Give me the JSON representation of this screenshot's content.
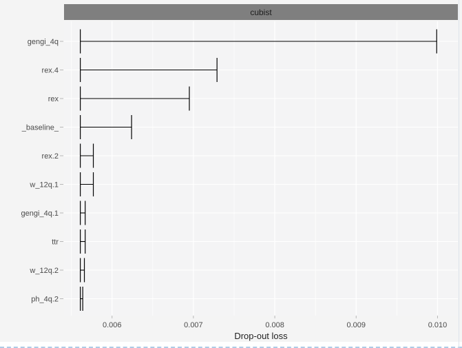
{
  "strip": {
    "label": "cubist"
  },
  "axis": {
    "x_title": "Drop-out loss",
    "x_tick_labels": [
      "0.006",
      "0.007",
      "0.008",
      "0.009",
      "0.010"
    ],
    "y_labels": [
      "gengi_4q",
      "rex.4",
      "rex",
      "_baseline_",
      "rex.2",
      "w_12q.1",
      "gengi_4q.1",
      "ttr",
      "w_12q.2",
      "ph_4q.2"
    ]
  },
  "colors": {
    "outer_bg": "#f4f4f4",
    "panel_bg": "#f4f4f5",
    "strip_bg": "#7f7f7f",
    "strip_text": "#1c1c1c",
    "gridline": "#ffffff",
    "errorbar": "#000000",
    "axis_text": "#4a4a4a",
    "tick_mark": "#b8b8b8",
    "pane_edge_dash": "#aecbe5"
  },
  "chart_data": {
    "type": "bar",
    "subtype": "horizontal-errorbar",
    "title": "cubist",
    "xlabel": "Drop-out loss",
    "ylabel": "",
    "orientation": "horizontal",
    "grid": true,
    "legend": false,
    "categories": [
      "gengi_4q",
      "rex.4",
      "rex",
      "_baseline_",
      "rex.2",
      "w_12q.1",
      "gengi_4q.1",
      "ttr",
      "w_12q.2",
      "ph_4q.2"
    ],
    "base_value": 0.00561,
    "values": [
      0.00999,
      0.00729,
      0.00695,
      0.00624,
      0.00577,
      0.00577,
      0.00567,
      0.00567,
      0.00566,
      0.00564
    ],
    "xlim": [
      0.00541,
      0.01025
    ],
    "xticks": [
      0.006,
      0.007,
      0.008,
      0.009,
      0.01
    ],
    "minor_xticks": [
      0.0055,
      0.0065,
      0.0075,
      0.0085,
      0.0095
    ]
  }
}
